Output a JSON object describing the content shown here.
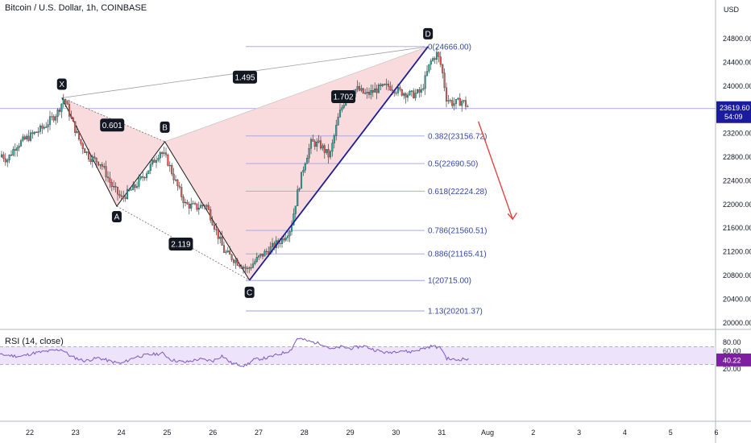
{
  "header": {
    "title": "Bitcoin / U.S. Dollar, 1h, COINBASE",
    "currency": "USD"
  },
  "rsi": {
    "label": "RSI (14, close)",
    "value": "40.22"
  },
  "price_tag": {
    "value": "23619.60",
    "countdown": "54:09"
  },
  "colors": {
    "bull": "#26a69a",
    "bear": "#ef5350",
    "pattern_fill": "#f8d5d8",
    "pattern_line": "#1a1a1a",
    "fib": "#3548a8",
    "fib_line": "#9aa3e0",
    "cd_line": "#1b1b9e",
    "arrow": "#e53935",
    "rsi_line": "#7e57c2",
    "rsi_band": "#ede3fb",
    "tag_bg": "#1b1b9e",
    "rsi_tag_bg": "#7e1fa3"
  },
  "chart_data": [
    {
      "type": "candlestick",
      "title": "Bitcoin / U.S. Dollar, 1h, COINBASE",
      "ylabel": "USD",
      "ylim": [
        19900,
        25200
      ],
      "x_ticks": [
        "22",
        "23",
        "24",
        "25",
        "26",
        "27",
        "28",
        "29",
        "30",
        "31",
        "Aug",
        "2",
        "3",
        "4",
        "5",
        "6"
      ],
      "y_ticks": [
        20000,
        20400,
        20800,
        21200,
        21600,
        22000,
        22400,
        22800,
        23200,
        23600,
        24000,
        24400,
        24800
      ],
      "y_tick_labels": [
        "20000.00",
        "20400.00",
        "20800.00",
        "21200.00",
        "21600.00",
        "22000.00",
        "22400.00",
        "22800.00",
        "23200.00",
        "23600.00",
        "24000.00",
        "24400.00",
        "24800.00"
      ],
      "last_price": 23619.6,
      "price_path": [
        {
          "d": 21.0,
          "p": 22800
        },
        {
          "d": 21.25,
          "p": 22950
        },
        {
          "d": 21.5,
          "p": 22750
        },
        {
          "d": 21.7,
          "p": 23000
        },
        {
          "d": 22.0,
          "p": 23150
        },
        {
          "d": 22.3,
          "p": 23300
        },
        {
          "d": 22.6,
          "p": 23550
        },
        {
          "d": 22.75,
          "p": 23800
        },
        {
          "d": 22.9,
          "p": 23450
        },
        {
          "d": 23.1,
          "p": 23050
        },
        {
          "d": 23.3,
          "p": 22800
        },
        {
          "d": 23.55,
          "p": 22700
        },
        {
          "d": 23.8,
          "p": 22300
        },
        {
          "d": 24.0,
          "p": 22100
        },
        {
          "d": 24.3,
          "p": 22300
        },
        {
          "d": 24.6,
          "p": 22600
        },
        {
          "d": 24.85,
          "p": 22900
        },
        {
          "d": 25.0,
          "p": 22750
        },
        {
          "d": 25.2,
          "p": 22350
        },
        {
          "d": 25.4,
          "p": 22000
        },
        {
          "d": 25.65,
          "p": 21950
        },
        {
          "d": 25.85,
          "p": 22000
        },
        {
          "d": 26.05,
          "p": 21600
        },
        {
          "d": 26.25,
          "p": 21200
        },
        {
          "d": 26.5,
          "p": 21050
        },
        {
          "d": 26.75,
          "p": 20900
        },
        {
          "d": 27.0,
          "p": 21100
        },
        {
          "d": 27.25,
          "p": 21250
        },
        {
          "d": 27.5,
          "p": 21400
        },
        {
          "d": 27.7,
          "p": 21600
        },
        {
          "d": 27.85,
          "p": 22200
        },
        {
          "d": 28.0,
          "p": 22700
        },
        {
          "d": 28.15,
          "p": 23050
        },
        {
          "d": 28.35,
          "p": 23000
        },
        {
          "d": 28.55,
          "p": 22800
        },
        {
          "d": 28.75,
          "p": 23500
        },
        {
          "d": 28.95,
          "p": 23900
        },
        {
          "d": 29.15,
          "p": 23950
        },
        {
          "d": 29.35,
          "p": 23850
        },
        {
          "d": 29.6,
          "p": 23950
        },
        {
          "d": 29.85,
          "p": 24000
        },
        {
          "d": 30.1,
          "p": 23900
        },
        {
          "d": 30.35,
          "p": 23850
        },
        {
          "d": 30.55,
          "p": 23900
        },
        {
          "d": 30.75,
          "p": 24400
        },
        {
          "d": 30.9,
          "p": 24550
        },
        {
          "d": 31.0,
          "p": 24300
        },
        {
          "d": 31.1,
          "p": 23800
        },
        {
          "d": 31.25,
          "p": 23700
        },
        {
          "d": 31.45,
          "p": 23750
        },
        {
          "d": 31.6,
          "p": 23620
        }
      ],
      "harmonic_pattern": {
        "points": [
          {
            "label": "X",
            "day": 22.7,
            "price": 23800
          },
          {
            "label": "A",
            "day": 23.9,
            "price": 21970
          },
          {
            "label": "B",
            "day": 24.95,
            "price": 23060
          },
          {
            "label": "C",
            "day": 26.8,
            "price": 20720
          },
          {
            "label": "D",
            "day": 30.7,
            "price": 24666
          }
        ],
        "ratios": [
          {
            "label": "0.601",
            "between": "X-B",
            "day": 23.8,
            "price": 23340
          },
          {
            "label": "1.495",
            "between": "X-D",
            "day": 26.7,
            "price": 24150
          },
          {
            "label": "1.702",
            "between": "B-D",
            "day": 28.85,
            "price": 23820
          },
          {
            "label": "2.119",
            "between": "A-C",
            "day": 25.3,
            "price": 21330
          }
        ]
      },
      "fibonacci": [
        {
          "label": "0(24666.00)",
          "price": 24666.0
        },
        {
          "label": "0.382(23156.72)",
          "price": 23156.72
        },
        {
          "label": "0.5(22690.50)",
          "price": 22690.5
        },
        {
          "label": "0.618(22224.28)",
          "price": 22224.28
        },
        {
          "label": "0.786(21560.51)",
          "price": 21560.51
        },
        {
          "label": "0.886(21165.41)",
          "price": 21165.41
        },
        {
          "label": "1(20715.00)",
          "price": 20715.0
        },
        {
          "label": "1.13(20201.37)",
          "price": 20201.37
        }
      ],
      "projection": {
        "from_day": 31.8,
        "from_price": 23400,
        "to_day": 32.55,
        "to_price": 21750
      }
    },
    {
      "type": "line",
      "title": "RSI (14, close)",
      "ylim": [
        19,
        93
      ],
      "y_ticks": [
        20,
        40,
        60,
        80
      ],
      "y_tick_labels": [
        "20.00",
        "40.00",
        "60.00",
        "80.00"
      ],
      "bands": [
        30,
        70
      ],
      "series": [
        {
          "values": [
            {
              "d": 21.0,
              "v": 44
            },
            {
              "d": 21.4,
              "v": 52
            },
            {
              "d": 21.8,
              "v": 48
            },
            {
              "d": 22.1,
              "v": 56
            },
            {
              "d": 22.4,
              "v": 60
            },
            {
              "d": 22.7,
              "v": 64
            },
            {
              "d": 22.9,
              "v": 48
            },
            {
              "d": 23.2,
              "v": 38
            },
            {
              "d": 23.5,
              "v": 45
            },
            {
              "d": 23.8,
              "v": 36
            },
            {
              "d": 24.0,
              "v": 32
            },
            {
              "d": 24.3,
              "v": 47
            },
            {
              "d": 24.6,
              "v": 52
            },
            {
              "d": 24.9,
              "v": 55
            },
            {
              "d": 25.1,
              "v": 40
            },
            {
              "d": 25.4,
              "v": 35
            },
            {
              "d": 25.7,
              "v": 42
            },
            {
              "d": 26.0,
              "v": 38
            },
            {
              "d": 26.2,
              "v": 50
            },
            {
              "d": 26.4,
              "v": 33
            },
            {
              "d": 26.7,
              "v": 27
            },
            {
              "d": 26.9,
              "v": 41
            },
            {
              "d": 27.2,
              "v": 45
            },
            {
              "d": 27.5,
              "v": 55
            },
            {
              "d": 27.7,
              "v": 62
            },
            {
              "d": 27.85,
              "v": 90
            },
            {
              "d": 28.1,
              "v": 82
            },
            {
              "d": 28.4,
              "v": 76
            },
            {
              "d": 28.6,
              "v": 64
            },
            {
              "d": 28.8,
              "v": 70
            },
            {
              "d": 29.0,
              "v": 66
            },
            {
              "d": 29.3,
              "v": 72
            },
            {
              "d": 29.5,
              "v": 64
            },
            {
              "d": 29.8,
              "v": 56
            },
            {
              "d": 30.1,
              "v": 62
            },
            {
              "d": 30.3,
              "v": 58
            },
            {
              "d": 30.6,
              "v": 66
            },
            {
              "d": 30.8,
              "v": 72
            },
            {
              "d": 31.0,
              "v": 66
            },
            {
              "d": 31.1,
              "v": 44
            },
            {
              "d": 31.3,
              "v": 40
            },
            {
              "d": 31.5,
              "v": 43
            },
            {
              "d": 31.6,
              "v": 40.22
            }
          ]
        }
      ]
    }
  ]
}
